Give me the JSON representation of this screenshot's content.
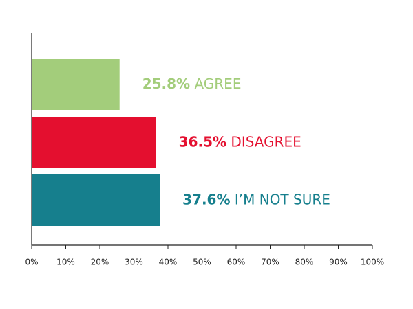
{
  "chart_data": {
    "type": "hbar",
    "categories": [
      "AGREE",
      "DISAGREE",
      "I’M NOT SURE"
    ],
    "values": [
      25.8,
      36.5,
      37.6
    ],
    "value_labels": [
      "25.8%",
      "36.5%",
      "37.6%"
    ],
    "colors": [
      "#a3cd7b",
      "#e40f2f",
      "#167f8d"
    ],
    "xlim": [
      0,
      100
    ],
    "xticks": [
      {
        "value": 0,
        "label": "0%"
      },
      {
        "value": 10,
        "label": "10%"
      },
      {
        "value": 20,
        "label": "20%"
      },
      {
        "value": 30,
        "label": "30%"
      },
      {
        "value": 40,
        "label": "40%"
      },
      {
        "value": 50,
        "label": "50%"
      },
      {
        "value": 60,
        "label": "60%"
      },
      {
        "value": 70,
        "label": "70%"
      },
      {
        "value": 80,
        "label": "80%"
      },
      {
        "value": 90,
        "label": "90%"
      },
      {
        "value": 100,
        "label": "100%"
      }
    ]
  }
}
